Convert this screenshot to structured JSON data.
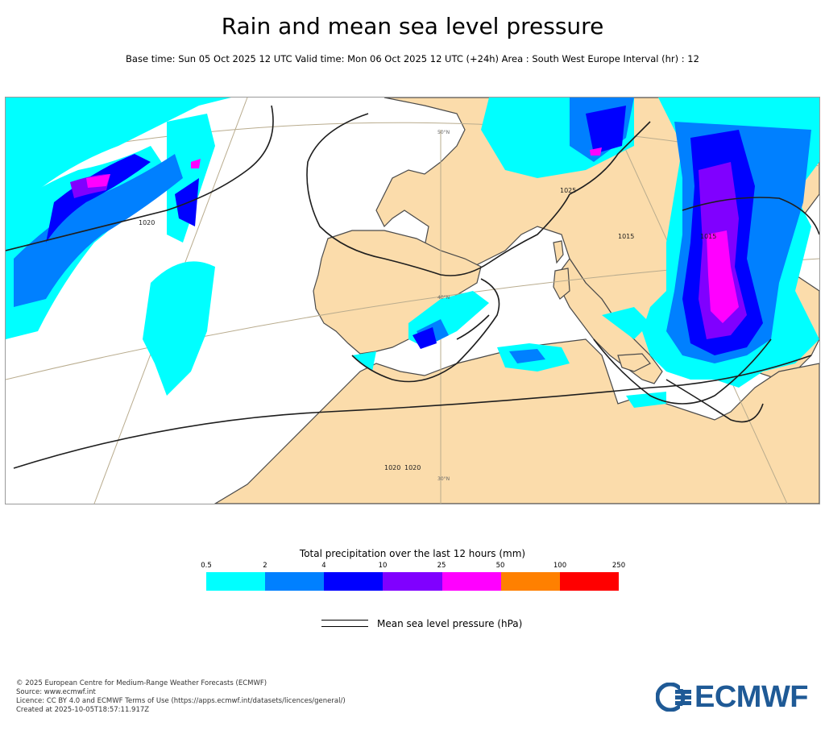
{
  "title": "Rain and mean sea level pressure",
  "subtitle": "Base time: Sun 05 Oct 2025 12 UTC Valid time: Mon 06 Oct 2025 12 UTC (+24h) Area : South West Europe Interval (hr) : 12",
  "map": {
    "region": "South West Europe",
    "isobar_labels": [
      "1020",
      "1020",
      "1025",
      "1015",
      "1015",
      "1020"
    ],
    "latitude_labels": [
      "50°N",
      "40°N",
      "30°N"
    ],
    "colors": {
      "land": "#fbdcab",
      "sea": "#ffffff",
      "coast": "#4a4a4a",
      "isobar": "#1e1e1e",
      "graticule": "#b9ac8e"
    }
  },
  "legend": {
    "title": "Total precipitation over the last 12 hours (mm)",
    "ticks": [
      "0.5",
      "2",
      "4",
      "10",
      "25",
      "50",
      "100",
      "250"
    ],
    "colors": [
      "#00ffff",
      "#0080ff",
      "#0000ff",
      "#8000ff",
      "#ff00ff",
      "#ff8000",
      "#ff0000"
    ],
    "pressure_label": "Mean sea level pressure (hPa)"
  },
  "footer": {
    "line1": "© 2025 European Centre for Medium-Range Weather Forecasts (ECMWF)",
    "line2": "Source: www.ecmwf.int",
    "line3": "Licence: CC BY 4.0 and ECMWF Terms of Use (https://apps.ecmwf.int/datasets/licences/general/)",
    "line4": "Created at 2025-10-05T18:57:11.917Z"
  },
  "logo": {
    "text": "ECMWF",
    "color": "#1f5a96"
  }
}
